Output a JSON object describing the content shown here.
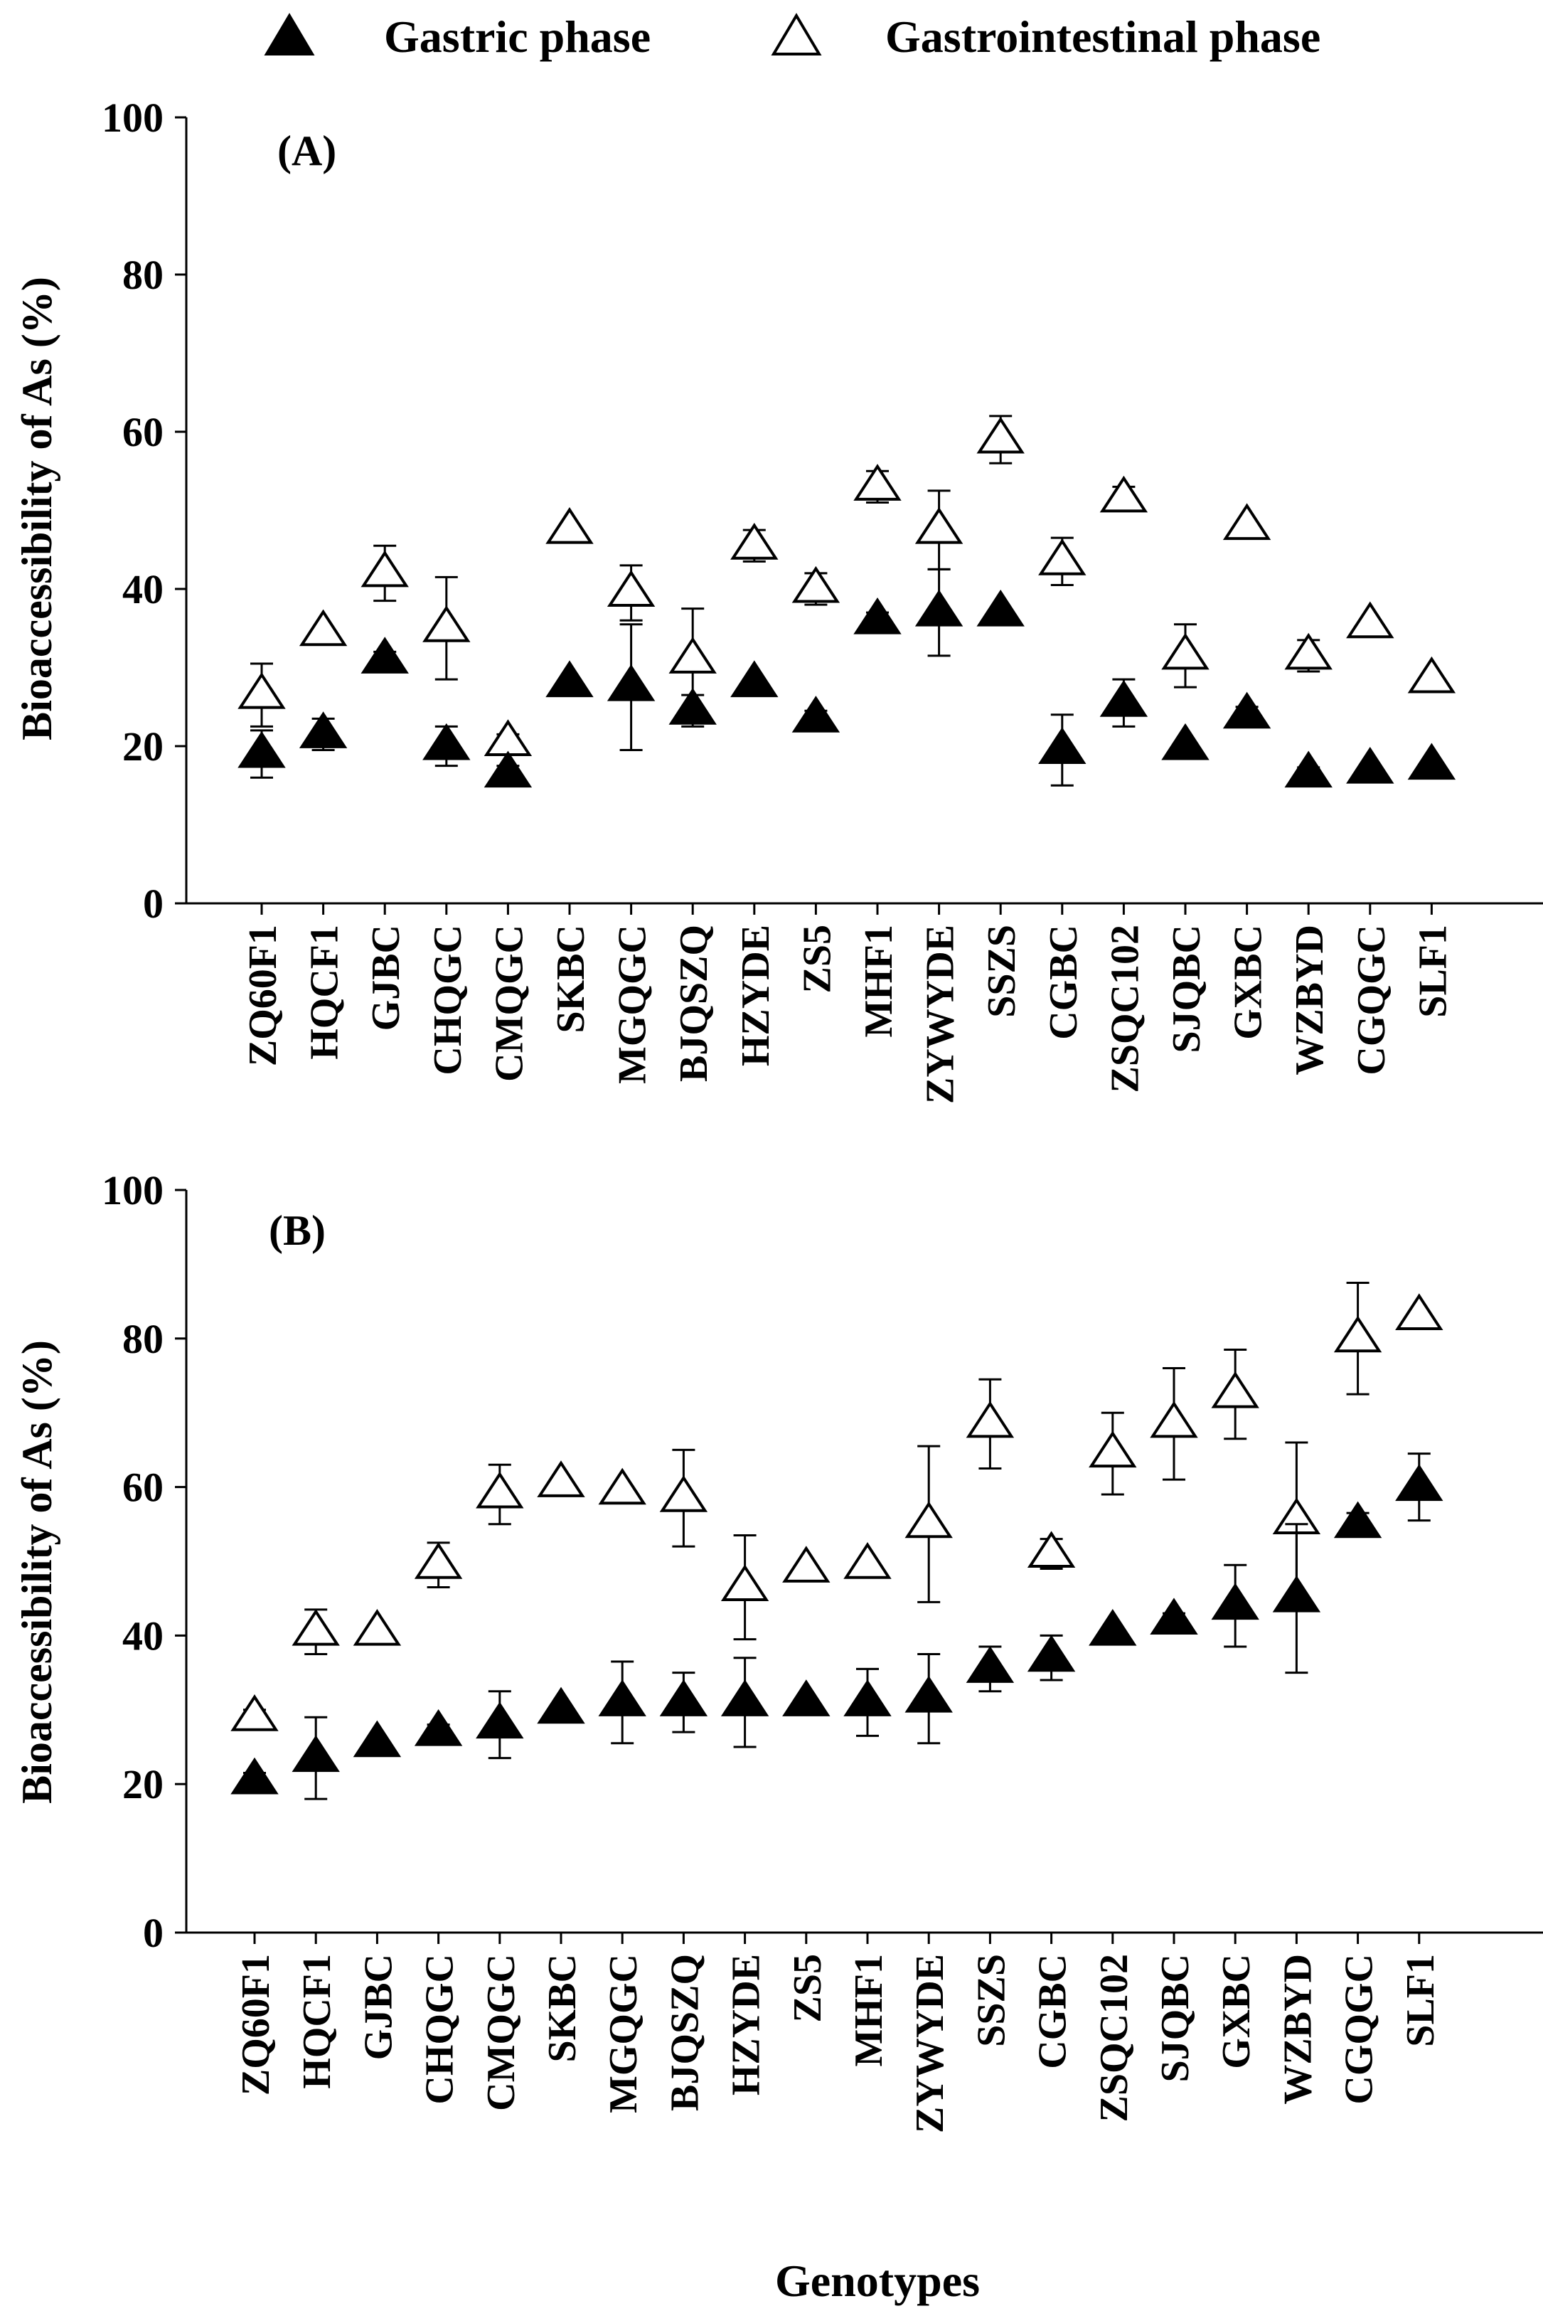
{
  "legend": {
    "gastric": "Gastric phase",
    "gi": "Gastrointestinal phase"
  },
  "x_title": "Genotypes",
  "colors": {
    "gastric": "#000000",
    "gi": "#ffffff",
    "axis": "#000000"
  },
  "chart_data": [
    {
      "type": "scatter",
      "panel_label": "(A)",
      "ylabel": "Bioaccessibility of As (%)",
      "xlabel": "Genotypes",
      "ylim": [
        0,
        100
      ],
      "yticks": [
        0,
        20,
        40,
        60,
        80,
        100
      ],
      "categories": [
        "ZQ60F1",
        "HQCF1",
        "GJBC",
        "CHQGC",
        "CMQGC",
        "SKBC",
        "MGQGC",
        "BJQSZQ",
        "HZYDE",
        "ZS5",
        "MHF1",
        "ZYWYDE",
        "SSZS",
        "CGBC",
        "ZSQC102",
        "SJQBC",
        "GXBC",
        "WZBYD",
        "CGQGC",
        "SLF1"
      ],
      "series": [
        {
          "name": "Gastric phase",
          "marker": "filled-triangle",
          "values": [
            19,
            21.5,
            31,
            20,
            16.5,
            28,
            27.5,
            24.5,
            28,
            23.5,
            36,
            37,
            37,
            19.5,
            25.5,
            20,
            24,
            16.5,
            17,
            17.5
          ],
          "errors": [
            3,
            2,
            1,
            2.5,
            1,
            0.5,
            8,
            2,
            0.5,
            1,
            1,
            5.5,
            0.5,
            4.5,
            3,
            0.5,
            1,
            0.8,
            0.5,
            0.5
          ]
        },
        {
          "name": "Gastrointestinal phase",
          "marker": "open-triangle",
          "values": [
            26.5,
            34.5,
            42,
            35,
            20.5,
            47.5,
            39.5,
            31,
            45.5,
            40,
            53,
            47.5,
            59,
            43.5,
            51.5,
            31.5,
            48,
            31.5,
            35.5,
            28.5
          ],
          "errors": [
            4,
            0.5,
            3.5,
            6.5,
            1,
            0.5,
            3.5,
            6.5,
            2,
            2,
            2,
            5,
            3,
            3,
            1.5,
            4,
            0.5,
            2,
            0.5,
            0.5
          ]
        }
      ]
    },
    {
      "type": "scatter",
      "panel_label": "(B)",
      "ylabel": "Bioaccessibility of As (%)",
      "xlabel": "Genotypes",
      "ylim": [
        0,
        100
      ],
      "yticks": [
        0,
        20,
        40,
        60,
        80,
        100
      ],
      "categories": [
        "ZQ60F1",
        "HQCF1",
        "GJBC",
        "CHQGC",
        "CMQGC",
        "SKBC",
        "MGQGC",
        "BJQSZQ",
        "HZYDE",
        "ZS5",
        "MHF1",
        "ZYWYDE",
        "SSZS",
        "CGBC",
        "ZSQC102",
        "SJQBC",
        "GXBC",
        "WZBYD",
        "CGQGC",
        "SLF1"
      ],
      "series": [
        {
          "name": "Gastric phase",
          "marker": "filled-triangle",
          "values": [
            20.5,
            23.5,
            25.5,
            27,
            28,
            30,
            31,
            31,
            31,
            31,
            31,
            31.5,
            35.5,
            37,
            40.5,
            42,
            44,
            45,
            55,
            60
          ],
          "errors": [
            1,
            5.5,
            0.5,
            1,
            4.5,
            0.5,
            5.5,
            4,
            6,
            0.5,
            4.5,
            6,
            3,
            3,
            0.5,
            1,
            5.5,
            10,
            1.5,
            4.5
          ]
        },
        {
          "name": "Gastrointestinal phase",
          "marker": "open-triangle",
          "values": [
            29,
            40.5,
            40.5,
            49.5,
            59,
            60.5,
            59.5,
            58.5,
            46.5,
            49,
            49.5,
            55,
            68.5,
            51,
            64.5,
            68.5,
            72.5,
            55.5,
            80,
            83
          ],
          "errors": [
            1,
            3,
            0.5,
            3,
            4,
            0.5,
            0.5,
            6.5,
            7,
            0.5,
            0.5,
            10.5,
            6,
            2,
            5.5,
            7.5,
            6,
            10.5,
            7.5,
            0.5
          ]
        }
      ]
    }
  ]
}
